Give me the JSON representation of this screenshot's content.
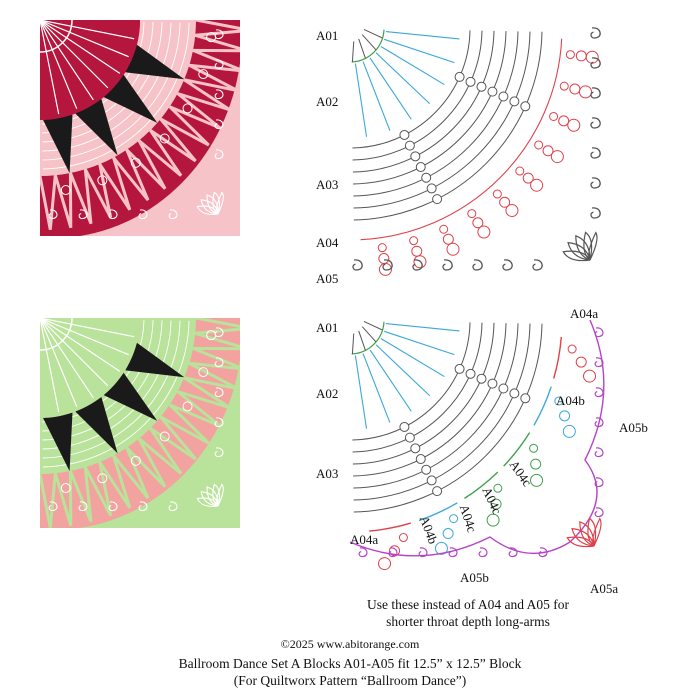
{
  "colors": {
    "red_dark": "#b5163d",
    "red_light": "#f6c3c8",
    "green_light": "#b9e29a",
    "pink": "#f2a3a0",
    "black": "#1a1a1a",
    "line_red": "#e0414a",
    "line_green": "#3fa24b",
    "line_blue": "#3aa8dc",
    "line_magenta": "#b544c8",
    "line_grey": "#555555"
  },
  "labels_top": [
    "A01",
    "A02",
    "A03",
    "A04",
    "A05"
  ],
  "labels_bottom": {
    "left": [
      "A01",
      "A02",
      "A03",
      "A04a"
    ],
    "a04a_top": "A04a",
    "a04b_top": "A04b",
    "a05b_right": "A05b",
    "a04c_1": "A04c",
    "a04c_2": "A04c",
    "a04c_3": "A04c",
    "a04b_bottom": "A04b",
    "a05b_bottom": "A05b",
    "a05a": "A05a"
  },
  "note_lines": [
    "Use these instead of A04 and A05 for",
    "shorter throat depth long-arms"
  ],
  "footer": {
    "copyright": "©2025 www.abitorange.com",
    "title": "Ballroom Dance Set A Blocks A01-A05 fit 12.5” x 12.5” Block",
    "subtitle": "(For Quiltworx Pattern “Ballroom Dance”)"
  }
}
